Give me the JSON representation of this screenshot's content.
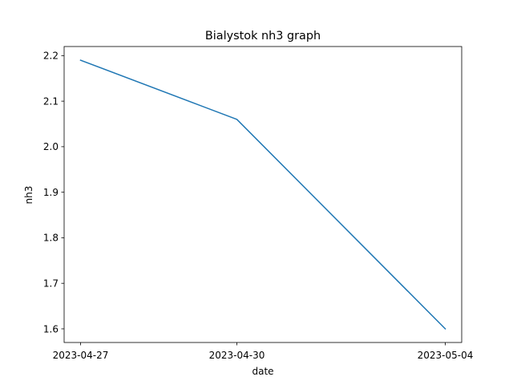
{
  "chart_data": {
    "type": "line",
    "title": "Bialystok nh3 graph",
    "xlabel": "date",
    "ylabel": "nh3",
    "x": [
      "2023-04-27",
      "2023-04-30",
      "2023-05-04"
    ],
    "series": [
      {
        "values": [
          2.19,
          2.06,
          1.6
        ],
        "color": "#1f77b4"
      }
    ],
    "ylim": [
      1.57,
      2.22
    ],
    "yticks": [
      1.6,
      1.7,
      1.8,
      1.9,
      2.0,
      2.1,
      2.2
    ],
    "ytick_labels": [
      "1.6",
      "1.7",
      "1.8",
      "1.9",
      "2.0",
      "2.1",
      "2.2"
    ],
    "xticks": [
      "2023-04-27",
      "2023-04-30",
      "2023-05-04"
    ],
    "grid": false,
    "legend": false
  }
}
